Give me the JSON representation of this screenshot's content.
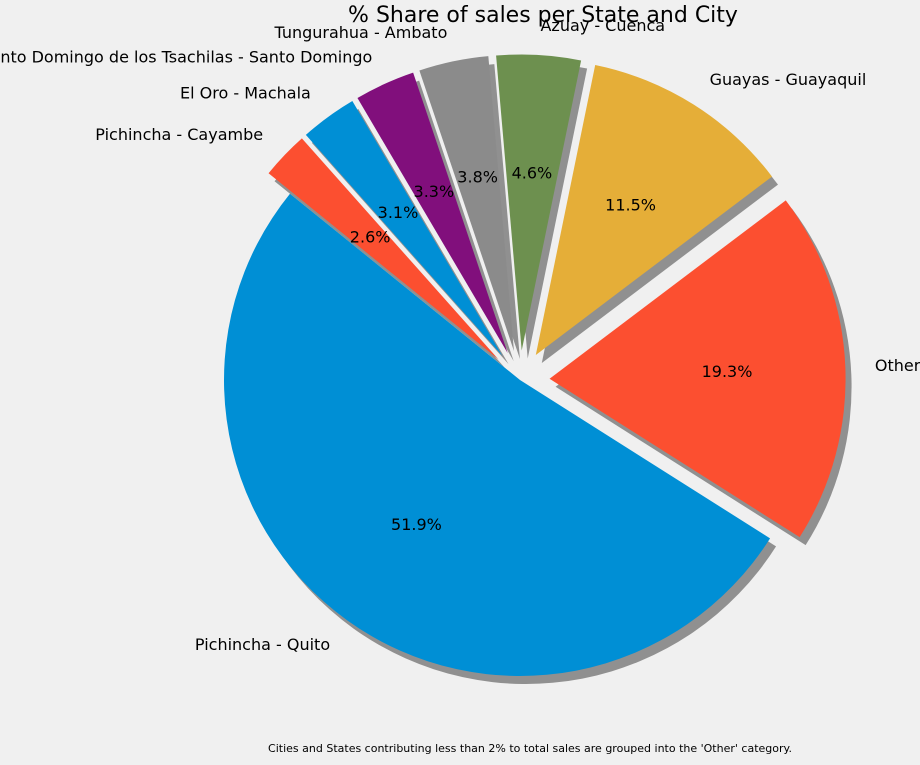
{
  "chart_data": {
    "type": "pie",
    "title": "% Share of sales per State and City",
    "footnote": "Cities and States contributing less than 2% to total sales are grouped into the 'Other' category.",
    "start_angle_deg": 141,
    "direction": "counterclockwise",
    "shadow": true,
    "slices": [
      {
        "label": "Pichincha - Quito",
        "value": 51.9,
        "pct_label": "51.9%",
        "color": "#008fd5",
        "explode": 0
      },
      {
        "label": "Other",
        "value": 19.3,
        "pct_label": "19.3%",
        "color": "#fc4f30",
        "explode": 0.1
      },
      {
        "label": "Guayas - Guayaquil",
        "value": 11.5,
        "pct_label": "11.5%",
        "color": "#e5ae38",
        "explode": 0.1
      },
      {
        "label": "Azuay - Cuenca",
        "value": 4.6,
        "pct_label": "4.6%",
        "color": "#6d904f",
        "explode": 0.1
      },
      {
        "label": "Tungurahua - Ambato",
        "value": 3.8,
        "pct_label": "3.8%",
        "color": "#8b8b8b",
        "explode": 0.1
      },
      {
        "label": "Santo Domingo de los Tsachilas - Santo Domingo",
        "value": 3.3,
        "pct_label": "3.3%",
        "color": "#810f7c",
        "explode": 0.1
      },
      {
        "label": "El Oro - Machala",
        "value": 3.1,
        "pct_label": "3.1%",
        "color": "#008fd5",
        "explode": 0.1
      },
      {
        "label": "Pichincha - Cayambe",
        "value": 2.6,
        "pct_label": "2.6%",
        "color": "#fc4f30",
        "explode": 0.1
      }
    ]
  }
}
